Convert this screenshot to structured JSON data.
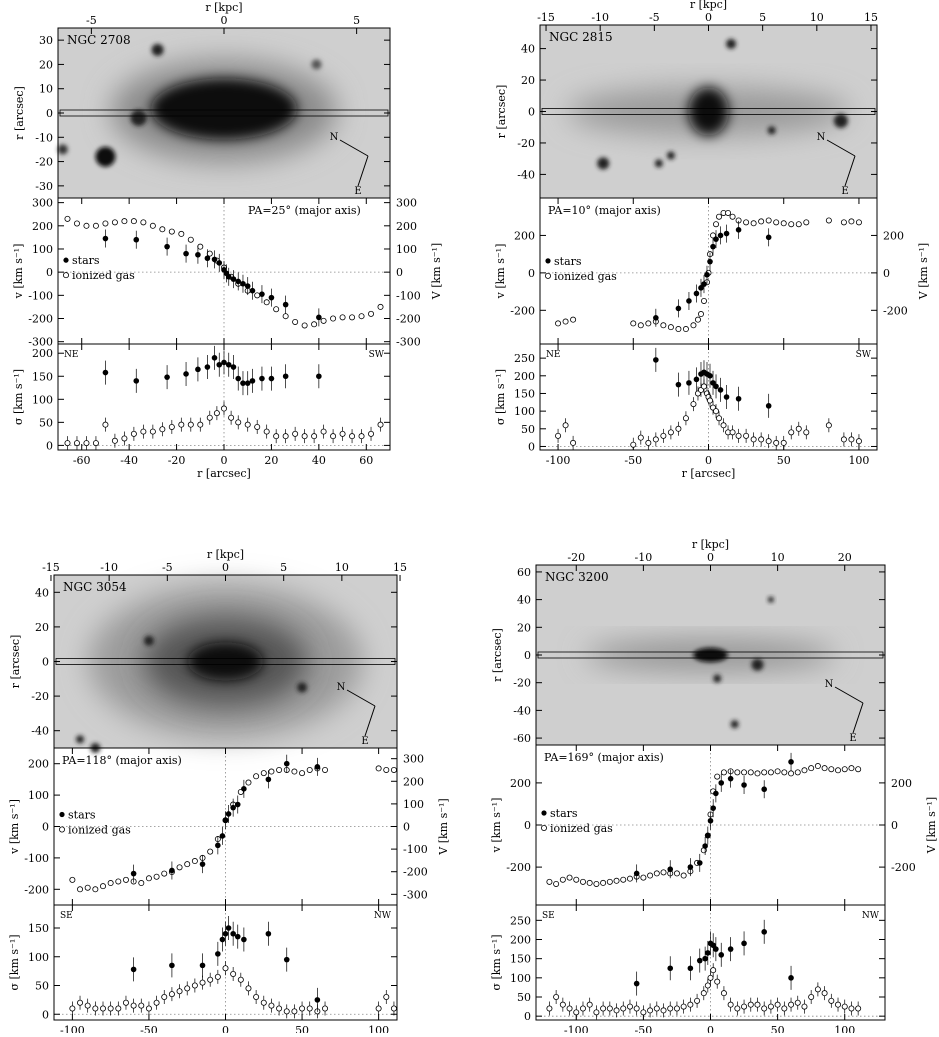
{
  "chart_data": [
    {
      "galaxy": "NGC 2708",
      "type": "scatter",
      "pa_label": "PA=25° (major axis)",
      "dir_left": "NE",
      "dir_right": "SW",
      "compass": {
        "n": "N",
        "e": "E"
      },
      "xlabel": "r [arcsec]",
      "xlim": [
        -70,
        70
      ],
      "xticks": [
        -60,
        -40,
        -20,
        0,
        20,
        40,
        60
      ],
      "kpc_label": "r [kpc]",
      "kpc_per_arcsec": 0.0894,
      "kpc_ticks": [
        -5,
        0,
        5
      ],
      "image_ylabel": "r [arcsec]",
      "image_ylim": [
        -35,
        35
      ],
      "image_yticks": [
        -30,
        -20,
        -10,
        0,
        10,
        20,
        30
      ],
      "vel_ylabel": "v [km s⁻¹]",
      "vel_ylim": [
        -310,
        320
      ],
      "vel_yticks": [
        -300,
        -200,
        -100,
        0,
        100,
        200,
        300
      ],
      "V_ylabel": "V [km s⁻¹]",
      "V_ticks": [
        -300,
        -200,
        -100,
        0,
        100,
        200,
        300
      ],
      "sin_i": 1.0,
      "sig_ylabel": "σ [km s⁻¹]",
      "sig_ylim": [
        -10,
        220
      ],
      "sig_yticks": [
        0,
        50,
        100,
        150,
        200
      ],
      "legend": {
        "stars": "stars",
        "gas": "ionized gas"
      },
      "stars_v": {
        "x": [
          -50,
          -37,
          -24,
          -16,
          -11,
          -7,
          -4,
          -2,
          0,
          1,
          2,
          4,
          6,
          8,
          10,
          12,
          16,
          20,
          26,
          40
        ],
        "y": [
          145,
          140,
          110,
          80,
          75,
          60,
          55,
          40,
          10,
          -5,
          -20,
          -30,
          -40,
          -50,
          -60,
          -80,
          -95,
          -110,
          -140,
          -195
        ]
      },
      "gas_v": {
        "x": [
          -66,
          -62,
          -58,
          -54,
          -50,
          -46,
          -42,
          -38,
          -34,
          -30,
          -26,
          -22,
          -18,
          -14,
          -10,
          -6,
          -3,
          0,
          3,
          6,
          10,
          14,
          18,
          22,
          26,
          30,
          34,
          38,
          42,
          46,
          50,
          54,
          58,
          62,
          66
        ],
        "y": [
          230,
          210,
          200,
          200,
          210,
          215,
          220,
          220,
          215,
          200,
          185,
          175,
          165,
          140,
          110,
          80,
          50,
          20,
          -20,
          -50,
          -80,
          -100,
          -130,
          -160,
          -190,
          -215,
          -230,
          -225,
          -210,
          -200,
          -195,
          -195,
          -190,
          -180,
          -150
        ]
      },
      "stars_sig": {
        "x": [
          -50,
          -37,
          -24,
          -16,
          -11,
          -7,
          -4,
          -2,
          0,
          2,
          4,
          6,
          8,
          10,
          12,
          16,
          20,
          26,
          40
        ],
        "y": [
          158,
          140,
          148,
          155,
          165,
          170,
          190,
          175,
          180,
          175,
          170,
          145,
          135,
          135,
          140,
          145,
          145,
          150,
          150
        ]
      },
      "gas_sig": {
        "x": [
          -66,
          -62,
          -58,
          -54,
          -50,
          -46,
          -42,
          -38,
          -34,
          -30,
          -26,
          -22,
          -18,
          -14,
          -10,
          -6,
          -3,
          0,
          3,
          6,
          10,
          14,
          18,
          22,
          26,
          30,
          34,
          38,
          42,
          46,
          50,
          54,
          58,
          62,
          66
        ],
        "y": [
          5,
          5,
          5,
          5,
          45,
          10,
          15,
          25,
          30,
          30,
          35,
          40,
          45,
          45,
          45,
          60,
          70,
          80,
          60,
          50,
          45,
          40,
          30,
          20,
          20,
          25,
          20,
          20,
          30,
          20,
          25,
          20,
          20,
          25,
          45
        ]
      }
    },
    {
      "galaxy": "NGC 2815",
      "type": "scatter",
      "pa_label": "PA=10° (major axis)",
      "dir_left": "NE",
      "dir_right": "SW",
      "compass": {
        "n": "N",
        "e": "E"
      },
      "xlabel": "r [arcsec]",
      "xlim": [
        -112,
        112
      ],
      "xticks": [
        -100,
        -50,
        0,
        50,
        100
      ],
      "kpc_label": "r [kpc]",
      "kpc_per_arcsec": 0.1389,
      "kpc_ticks": [
        -15,
        -10,
        -5,
        0,
        5,
        10,
        15
      ],
      "image_ylabel": "r [arcsec]",
      "image_ylim": [
        -55,
        55
      ],
      "image_yticks": [
        -40,
        -20,
        0,
        20,
        40
      ],
      "vel_ylabel": "v [km s⁻¹]",
      "vel_ylim": [
        -380,
        400
      ],
      "vel_yticks": [
        -200,
        0,
        200
      ],
      "V_ylabel": "V [km s⁻¹]",
      "V_ticks": [
        -200,
        0,
        200
      ],
      "sin_i": 1.0,
      "sig_ylabel": "σ [km s⁻¹]",
      "sig_ylim": [
        -10,
        290
      ],
      "sig_yticks": [
        0,
        50,
        100,
        150,
        200,
        250
      ],
      "legend": {
        "stars": "stars",
        "gas": "ionized gas"
      },
      "stars_v": {
        "x": [
          -35,
          -20,
          -13,
          -8,
          -5,
          -3,
          -1,
          1,
          3,
          5,
          8,
          12,
          20,
          40
        ],
        "y": [
          -240,
          -190,
          -150,
          -110,
          -80,
          -60,
          -10,
          60,
          140,
          180,
          200,
          210,
          230,
          190
        ]
      },
      "gas_v": {
        "x": [
          -100,
          -95,
          -90,
          -50,
          -45,
          -40,
          -35,
          -30,
          -25,
          -20,
          -15,
          -10,
          -7,
          -5,
          -3,
          -1,
          0,
          1,
          3,
          5,
          7,
          10,
          13,
          16,
          20,
          25,
          30,
          35,
          40,
          45,
          50,
          55,
          60,
          65,
          80,
          90,
          95,
          100
        ],
        "y": [
          -270,
          -260,
          -250,
          -270,
          -280,
          -270,
          -260,
          -280,
          -290,
          -300,
          -300,
          -280,
          -250,
          -220,
          -150,
          -50,
          0,
          100,
          200,
          260,
          300,
          320,
          320,
          300,
          280,
          270,
          265,
          275,
          280,
          270,
          265,
          260,
          260,
          270,
          280,
          270,
          275,
          270
        ]
      },
      "stars_sig": {
        "x": [
          -35,
          -20,
          -13,
          -8,
          -5,
          -3,
          -1,
          1,
          3,
          5,
          8,
          12,
          20,
          40
        ],
        "y": [
          245,
          175,
          180,
          190,
          205,
          210,
          205,
          200,
          180,
          170,
          160,
          140,
          135,
          115
        ]
      },
      "gas_sig": {
        "x": [
          -100,
          -95,
          -90,
          -50,
          -45,
          -40,
          -35,
          -30,
          -25,
          -20,
          -15,
          -10,
          -7,
          -5,
          -3,
          -1,
          0,
          1,
          3,
          5,
          7,
          10,
          13,
          16,
          20,
          25,
          30,
          35,
          40,
          45,
          50,
          55,
          60,
          65,
          80,
          90,
          95,
          100
        ],
        "y": [
          30,
          60,
          10,
          5,
          25,
          10,
          20,
          30,
          40,
          50,
          80,
          120,
          150,
          160,
          170,
          150,
          140,
          130,
          110,
          100,
          80,
          60,
          40,
          40,
          30,
          30,
          20,
          20,
          15,
          10,
          10,
          40,
          50,
          40,
          60,
          20,
          20,
          15
        ]
      }
    },
    {
      "galaxy": "NGC 3054",
      "type": "scatter",
      "pa_label": "PA=118° (major axis)",
      "dir_left": "SE",
      "dir_right": "NW",
      "compass": {
        "n": "N",
        "e": "E"
      },
      "xlabel": "r [arcsec]",
      "xlim": [
        -112,
        112
      ],
      "xticks": [
        -100,
        -50,
        0,
        50,
        100
      ],
      "kpc_label": "r [kpc]",
      "kpc_per_arcsec": 0.1316,
      "kpc_ticks": [
        -15,
        -10,
        -5,
        0,
        5,
        10,
        15
      ],
      "image_ylabel": "r [arcsec]",
      "image_ylim": [
        -50,
        50
      ],
      "image_yticks": [
        -40,
        -20,
        0,
        20,
        40
      ],
      "vel_ylabel": "v [km s⁻¹]",
      "vel_ylim": [
        -250,
        250
      ],
      "vel_yticks": [
        -200,
        -100,
        0,
        100,
        200
      ],
      "V_ylabel": "V [km s⁻¹]",
      "V_ticks": [
        -300,
        -200,
        -100,
        0,
        100,
        200,
        300
      ],
      "sin_i": 0.72,
      "sig_ylabel": "σ [km s⁻¹]",
      "sig_ylim": [
        -10,
        190
      ],
      "sig_yticks": [
        0,
        50,
        100,
        150
      ],
      "legend": {
        "stars": "stars",
        "gas": "ionized gas"
      },
      "stars_v": {
        "x": [
          -60,
          -35,
          -15,
          -5,
          -2,
          0,
          2,
          5,
          8,
          12,
          28,
          40,
          60
        ],
        "y": [
          -150,
          -140,
          -120,
          -60,
          -30,
          20,
          40,
          60,
          70,
          120,
          150,
          200,
          190
        ]
      },
      "gas_v": {
        "x": [
          -100,
          -95,
          -90,
          -85,
          -80,
          -75,
          -70,
          -65,
          -60,
          -55,
          -50,
          -45,
          -40,
          -35,
          -30,
          -25,
          -20,
          -15,
          -10,
          -5,
          0,
          5,
          10,
          15,
          20,
          25,
          30,
          35,
          40,
          45,
          50,
          55,
          60,
          65,
          100,
          105,
          110
        ],
        "y": [
          -170,
          -200,
          -195,
          -200,
          -190,
          -180,
          -175,
          -170,
          -175,
          -180,
          -165,
          -160,
          -150,
          -145,
          -130,
          -120,
          -110,
          -100,
          -80,
          -40,
          20,
          70,
          110,
          140,
          160,
          170,
          175,
          180,
          180,
          175,
          170,
          180,
          185,
          180,
          185,
          180,
          180
        ]
      },
      "stars_sig": {
        "x": [
          -60,
          -35,
          -15,
          -5,
          -2,
          0,
          2,
          5,
          8,
          12,
          28,
          40,
          60
        ],
        "y": [
          78,
          85,
          85,
          105,
          130,
          140,
          150,
          140,
          135,
          130,
          140,
          95,
          25
        ]
      },
      "gas_sig": {
        "x": [
          -100,
          -95,
          -90,
          -85,
          -80,
          -75,
          -70,
          -65,
          -60,
          -55,
          -50,
          -45,
          -40,
          -35,
          -30,
          -25,
          -20,
          -15,
          -10,
          -5,
          0,
          5,
          10,
          15,
          20,
          25,
          30,
          35,
          40,
          45,
          50,
          55,
          60,
          65,
          100,
          105,
          110
        ],
        "y": [
          10,
          20,
          15,
          10,
          10,
          10,
          10,
          20,
          15,
          15,
          10,
          20,
          30,
          35,
          40,
          45,
          50,
          55,
          60,
          65,
          80,
          70,
          60,
          45,
          30,
          20,
          15,
          10,
          5,
          5,
          10,
          10,
          5,
          10,
          10,
          30,
          10
        ]
      }
    },
    {
      "galaxy": "NGC 3200",
      "type": "scatter",
      "pa_label": "PA=169° (major axis)",
      "dir_left": "SE",
      "dir_right": "NW",
      "compass": {
        "n": "N",
        "e": "E"
      },
      "xlabel": "r [arcsec]",
      "xlim": [
        -130,
        130
      ],
      "xticks": [
        -100,
        -50,
        0,
        50,
        100
      ],
      "kpc_label": "r [kpc]",
      "kpc_per_arcsec": 0.2,
      "kpc_ticks": [
        -20,
        -10,
        0,
        10,
        20
      ],
      "image_ylabel": "r [arcsec]",
      "image_ylim": [
        -65,
        65
      ],
      "image_yticks": [
        -60,
        -40,
        -20,
        0,
        20,
        40,
        60
      ],
      "vel_ylabel": "v [km s⁻¹]",
      "vel_ylim": [
        -380,
        380
      ],
      "vel_yticks": [
        -200,
        0,
        200
      ],
      "V_ylabel": "V [km s⁻¹]",
      "V_ticks": [
        -200,
        0,
        200
      ],
      "sin_i": 1.0,
      "sig_ylabel": "σ [km s⁻¹]",
      "sig_ylim": [
        -10,
        290
      ],
      "sig_yticks": [
        0,
        50,
        100,
        150,
        200,
        250
      ],
      "legend": {
        "stars": "stars",
        "gas": "ionized gas"
      },
      "stars_v": {
        "x": [
          -55,
          -30,
          -15,
          -8,
          -4,
          -2,
          0,
          2,
          4,
          8,
          15,
          25,
          40,
          60
        ],
        "y": [
          -230,
          -210,
          -200,
          -180,
          -100,
          -50,
          20,
          80,
          150,
          200,
          220,
          190,
          170,
          300
        ]
      },
      "gas_v": {
        "x": [
          -120,
          -115,
          -110,
          -105,
          -100,
          -95,
          -90,
          -85,
          -80,
          -75,
          -70,
          -65,
          -60,
          -55,
          -50,
          -45,
          -40,
          -35,
          -30,
          -25,
          -20,
          -15,
          -10,
          -5,
          -2,
          0,
          2,
          5,
          10,
          15,
          20,
          25,
          30,
          35,
          40,
          45,
          50,
          55,
          60,
          65,
          70,
          75,
          80,
          85,
          90,
          95,
          100,
          105,
          110
        ],
        "y": [
          -270,
          -280,
          -260,
          -250,
          -260,
          -270,
          -275,
          -280,
          -275,
          -270,
          -265,
          -260,
          -255,
          -245,
          -250,
          -240,
          -230,
          -225,
          -230,
          -230,
          -240,
          -220,
          -180,
          -120,
          -50,
          50,
          160,
          230,
          250,
          255,
          250,
          250,
          250,
          245,
          250,
          250,
          255,
          250,
          245,
          250,
          260,
          270,
          280,
          270,
          265,
          260,
          265,
          270,
          265
        ]
      },
      "stars_sig": {
        "x": [
          -55,
          -30,
          -15,
          -8,
          -4,
          -2,
          0,
          2,
          4,
          8,
          15,
          25,
          40,
          60
        ],
        "y": [
          85,
          125,
          125,
          145,
          150,
          165,
          190,
          185,
          175,
          160,
          175,
          190,
          220,
          100
        ]
      },
      "gas_sig": {
        "x": [
          -120,
          -115,
          -110,
          -105,
          -100,
          -95,
          -90,
          -85,
          -80,
          -75,
          -70,
          -65,
          -60,
          -55,
          -50,
          -45,
          -40,
          -35,
          -30,
          -25,
          -20,
          -15,
          -10,
          -5,
          -2,
          0,
          2,
          5,
          10,
          15,
          20,
          25,
          30,
          35,
          40,
          45,
          50,
          55,
          60,
          65,
          70,
          75,
          80,
          85,
          90,
          95,
          100,
          105,
          110
        ],
        "y": [
          20,
          50,
          30,
          20,
          10,
          20,
          30,
          10,
          20,
          20,
          15,
          20,
          25,
          20,
          10,
          15,
          20,
          15,
          20,
          20,
          25,
          30,
          40,
          60,
          80,
          100,
          120,
          90,
          60,
          30,
          20,
          25,
          30,
          30,
          20,
          25,
          30,
          20,
          30,
          35,
          25,
          50,
          70,
          60,
          40,
          30,
          25,
          20,
          20
        ]
      }
    }
  ]
}
